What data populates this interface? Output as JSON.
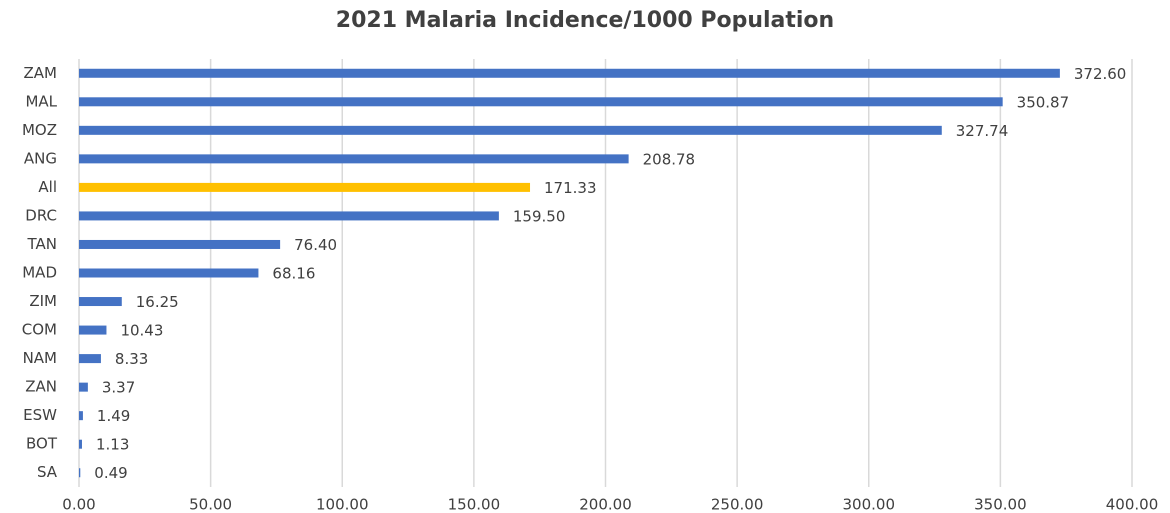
{
  "chart_data": {
    "type": "barh",
    "title": "2021 Malaria Incidence/1000 Population",
    "categories": [
      "ZAM",
      "MAL",
      "MOZ",
      "ANG",
      "All",
      "DRC",
      "TAN",
      "MAD",
      "ZIM",
      "COM",
      "NAM",
      "ZAN",
      "ESW",
      "BOT",
      "SA"
    ],
    "values": [
      372.6,
      350.87,
      327.74,
      208.78,
      171.33,
      159.5,
      76.4,
      68.16,
      16.25,
      10.43,
      8.33,
      3.37,
      1.49,
      1.13,
      0.49
    ],
    "value_labels": [
      "372.60",
      "350.87",
      "327.74",
      "208.78",
      "171.33",
      "159.50",
      "76.40",
      "68.16",
      "16.25",
      "10.43",
      "8.33",
      "3.37",
      "1.49",
      "1.13",
      "0.49"
    ],
    "colors": [
      "#4472c4",
      "#4472c4",
      "#4472c4",
      "#4472c4",
      "#ffc000",
      "#4472c4",
      "#4472c4",
      "#4472c4",
      "#4472c4",
      "#4472c4",
      "#4472c4",
      "#4472c4",
      "#4472c4",
      "#4472c4",
      "#4472c4"
    ],
    "xlim": [
      0,
      400
    ],
    "xticks": [
      {
        "value": 0,
        "label": "0.00"
      },
      {
        "value": 50,
        "label": "50.00"
      },
      {
        "value": 100,
        "label": "100.00"
      },
      {
        "value": 150,
        "label": "150.00"
      },
      {
        "value": 200,
        "label": "200.00"
      },
      {
        "value": 250,
        "label": "250.00"
      },
      {
        "value": 300,
        "label": "300.00"
      },
      {
        "value": 350,
        "label": "350.00"
      },
      {
        "value": 400,
        "label": "400.00"
      }
    ],
    "grid": true
  }
}
